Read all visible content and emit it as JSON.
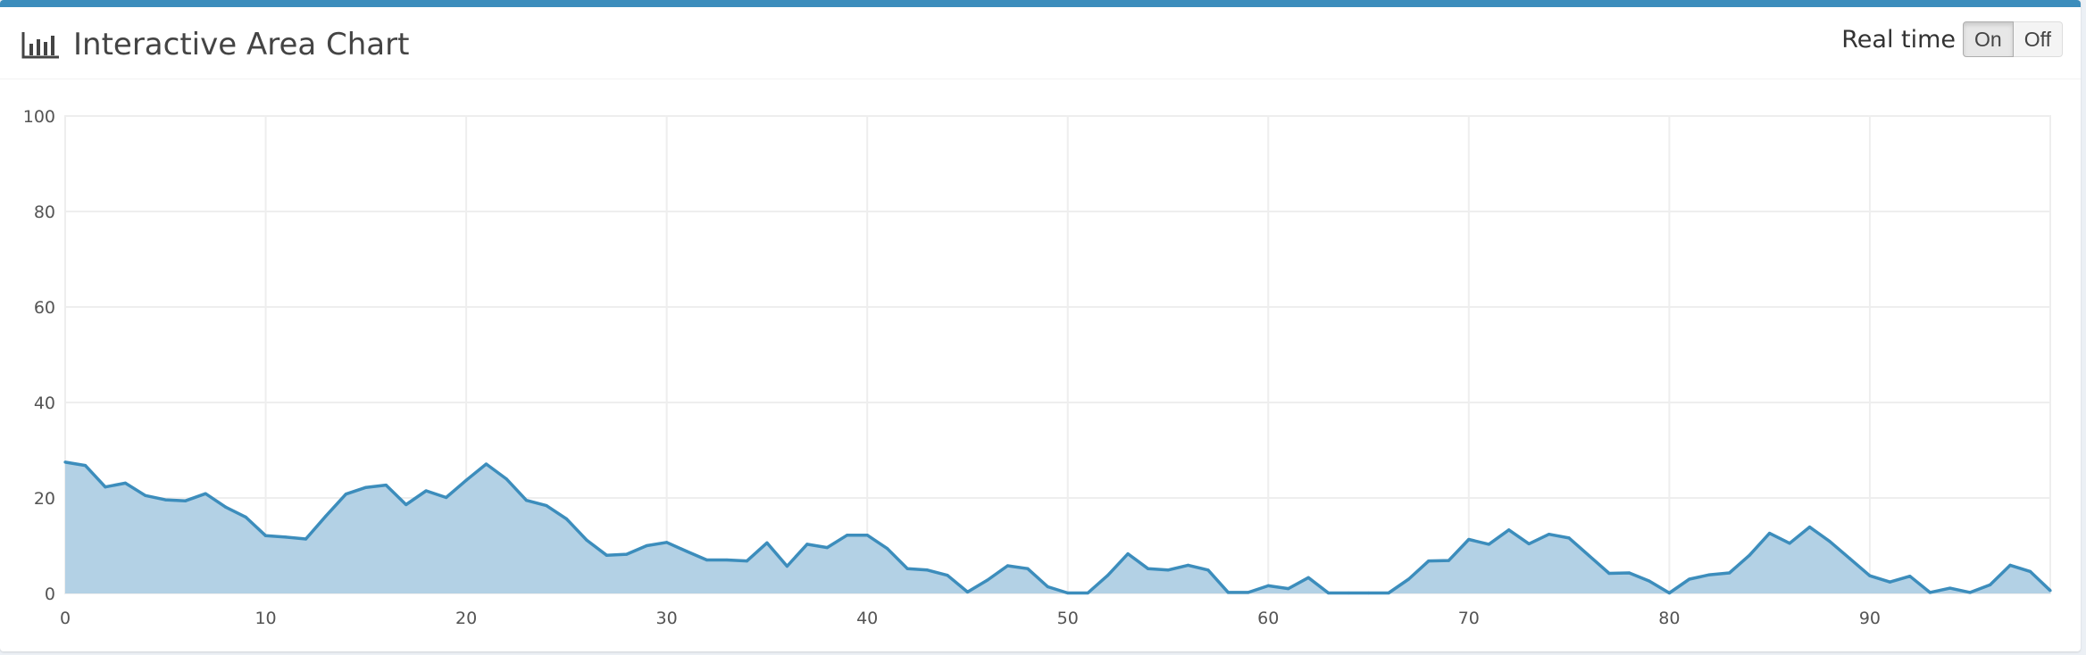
{
  "header": {
    "title": "Interactive Area Chart",
    "icon": "bar-chart-icon"
  },
  "realtime": {
    "label": "Real time",
    "options": [
      "On",
      "Off"
    ],
    "selected": "On"
  },
  "colors": {
    "accent": "#3c8dbc",
    "line": "#3c8dbc",
    "fill": "#b3d1e5",
    "grid": "#eeeeee"
  },
  "chart_data": {
    "type": "area",
    "title": "",
    "xlabel": "",
    "ylabel": "",
    "xlim": [
      0,
      99
    ],
    "ylim": [
      0,
      100
    ],
    "x_ticks": [
      0,
      10,
      20,
      30,
      40,
      50,
      60,
      70,
      80,
      90
    ],
    "y_ticks": [
      0,
      20,
      40,
      60,
      80,
      100
    ],
    "grid": true,
    "series": [
      {
        "values": [
          27.5,
          26.8,
          22.3,
          23.1,
          20.5,
          19.6,
          19.4,
          20.9,
          18.1,
          16.0,
          12.1,
          11.8,
          11.4,
          16.2,
          20.8,
          22.2,
          22.7,
          18.6,
          21.5,
          20.1,
          23.7,
          27.1,
          24.0,
          19.5,
          18.4,
          15.6,
          11.2,
          8.0,
          8.2,
          10.0,
          10.7,
          8.8,
          7.0,
          7.0,
          6.8,
          10.6,
          5.7,
          10.3,
          9.6,
          12.2,
          12.2,
          9.4,
          5.2,
          4.9,
          3.8,
          0.3,
          2.8,
          5.8,
          5.2,
          1.4,
          0.1,
          0.1,
          3.8,
          8.3,
          5.2,
          4.9,
          5.9,
          4.9,
          0.2,
          0.2,
          1.6,
          1.0,
          3.3,
          0.1,
          0.1,
          0.1,
          0.1,
          3.0,
          6.8,
          6.9,
          11.3,
          10.3,
          13.3,
          10.4,
          12.4,
          11.6,
          7.9,
          4.2,
          4.3,
          2.6,
          0.1,
          3.0,
          3.9,
          4.3,
          8.0,
          12.6,
          10.5,
          13.9,
          10.9,
          7.3,
          3.7,
          2.4,
          3.6,
          0.2,
          1.1,
          0.2,
          1.8,
          5.9,
          4.6,
          0.6
        ]
      }
    ]
  }
}
